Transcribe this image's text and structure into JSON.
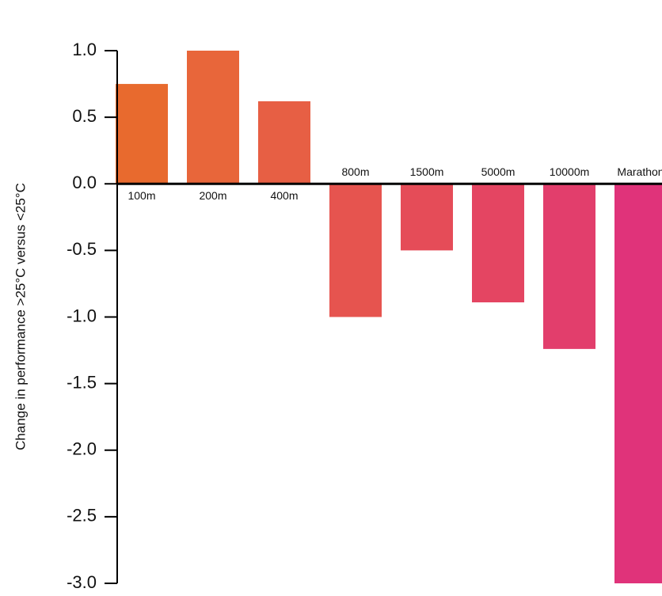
{
  "chart_data": {
    "type": "bar",
    "y_label": "Change in performance >25°C versus <25°C",
    "categories": [
      "100m",
      "200m",
      "400m",
      "800m",
      "1500m",
      "5000m",
      "10000m",
      "Marathon"
    ],
    "values": [
      0.75,
      1.0,
      0.62,
      -1.0,
      -0.5,
      -0.89,
      -1.24,
      -3.0
    ],
    "colors": [
      "#e86a2e",
      "#e8663a",
      "#e75f44",
      "#e6544f",
      "#e54c58",
      "#e44562",
      "#e23e6c",
      "#e0337a"
    ],
    "ylim": [
      -3.0,
      1.0
    ],
    "yticks": [
      {
        "value": 1.0,
        "label": "1.0"
      },
      0.5,
      {
        "value": 0.0,
        "label": "0.0"
      },
      -0.5,
      {
        "value": -1.0,
        "label": "-1.0"
      },
      -1.5,
      {
        "value": -2.0,
        "label": "-2.0"
      },
      -2.5,
      {
        "value": -3.0,
        "label": "-3.0"
      }
    ]
  }
}
